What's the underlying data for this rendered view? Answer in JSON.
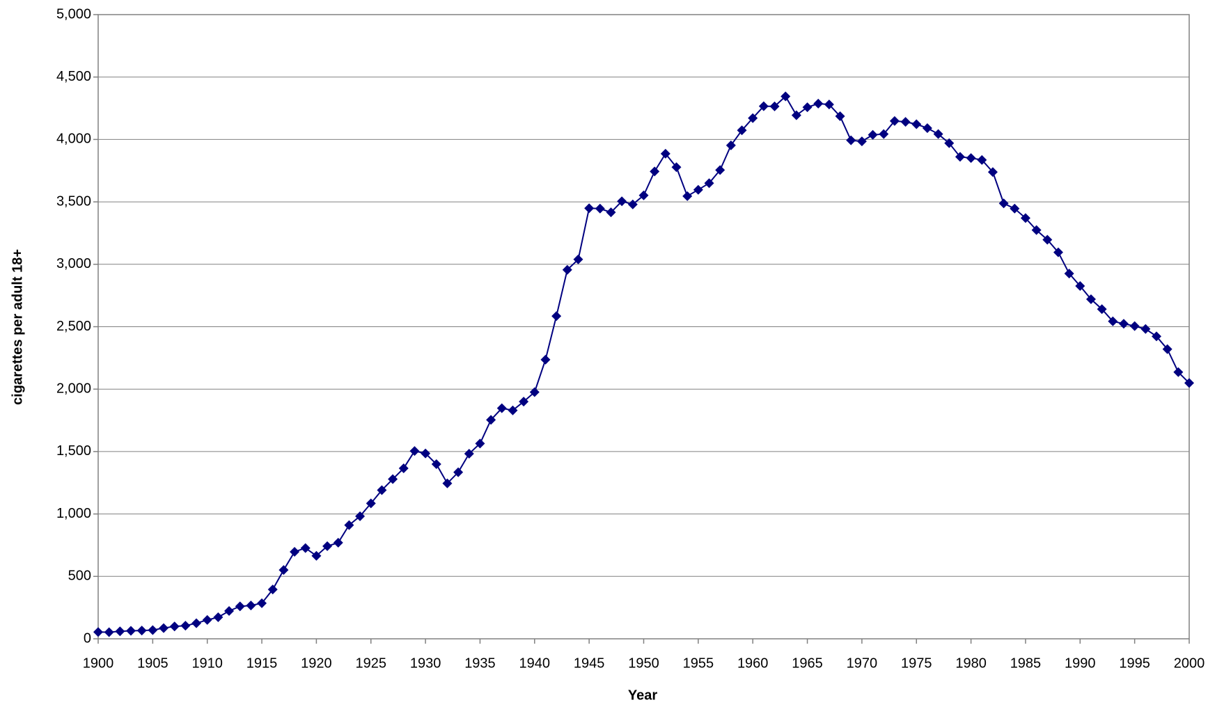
{
  "chart_data": {
    "type": "line",
    "x_label": "Year",
    "y_label": "cigarettes per adult 18+",
    "x": [
      1900,
      1901,
      1902,
      1903,
      1904,
      1905,
      1906,
      1907,
      1908,
      1909,
      1910,
      1911,
      1912,
      1913,
      1914,
      1915,
      1916,
      1917,
      1918,
      1919,
      1920,
      1921,
      1922,
      1923,
      1924,
      1925,
      1926,
      1927,
      1928,
      1929,
      1930,
      1931,
      1932,
      1933,
      1934,
      1935,
      1936,
      1937,
      1938,
      1939,
      1940,
      1941,
      1942,
      1943,
      1944,
      1945,
      1946,
      1947,
      1948,
      1949,
      1950,
      1951,
      1952,
      1953,
      1954,
      1955,
      1956,
      1957,
      1958,
      1959,
      1960,
      1961,
      1962,
      1963,
      1964,
      1965,
      1966,
      1967,
      1968,
      1969,
      1970,
      1971,
      1972,
      1973,
      1974,
      1975,
      1976,
      1977,
      1978,
      1979,
      1980,
      1981,
      1982,
      1983,
      1984,
      1985,
      1986,
      1987,
      1988,
      1989,
      1990,
      1991,
      1992,
      1993,
      1994,
      1995,
      1996,
      1997,
      1998,
      1999,
      2000
    ],
    "series": [
      {
        "color": "#000080",
        "values": [
          54,
          53,
          60,
          64,
          66,
          70,
          86,
          99,
          105,
          125,
          151,
          173,
          223,
          260,
          267,
          285,
          395,
          551,
          697,
          727,
          665,
          742,
          770,
          911,
          982,
          1085,
          1191,
          1279,
          1366,
          1504,
          1485,
          1399,
          1245,
          1334,
          1483,
          1564,
          1754,
          1847,
          1830,
          1900,
          1976,
          2236,
          2585,
          2956,
          3039,
          3449,
          3446,
          3416,
          3505,
          3480,
          3552,
          3744,
          3886,
          3778,
          3546,
          3597,
          3650,
          3755,
          3953,
          4073,
          4171,
          4266,
          4265,
          4345,
          4194,
          4258,
          4287,
          4280,
          4186,
          3993,
          3985,
          4037,
          4043,
          4148,
          4141,
          4122,
          4091,
          4043,
          3970,
          3861,
          3851,
          3836,
          3739,
          3488,
          3446,
          3370,
          3274,
          3197,
          3096,
          2926,
          2826,
          2720,
          2641,
          2543,
          2524,
          2505,
          2482,
          2423,
          2320,
          2136,
          2049
        ]
      }
    ],
    "xlim": [
      1900,
      2000
    ],
    "xticks": [
      1900,
      1905,
      1910,
      1915,
      1920,
      1925,
      1930,
      1935,
      1940,
      1945,
      1950,
      1955,
      1960,
      1965,
      1970,
      1975,
      1980,
      1985,
      1990,
      1995,
      2000
    ],
    "ylim": [
      0,
      5000
    ],
    "yticks": [
      0,
      500,
      {
        "value": 1000,
        "label": "1,000"
      },
      {
        "value": 1500,
        "label": "1,500"
      },
      {
        "value": 2000,
        "label": "2,000"
      },
      {
        "value": 2500,
        "label": "2,500"
      },
      {
        "value": 3000,
        "label": "3,000"
      },
      {
        "value": 3500,
        "label": "3,500"
      },
      {
        "value": 4000,
        "label": "4,000"
      },
      {
        "value": 4500,
        "label": "4,500"
      },
      {
        "value": 5000,
        "label": "5,000"
      }
    ],
    "grid": true
  }
}
